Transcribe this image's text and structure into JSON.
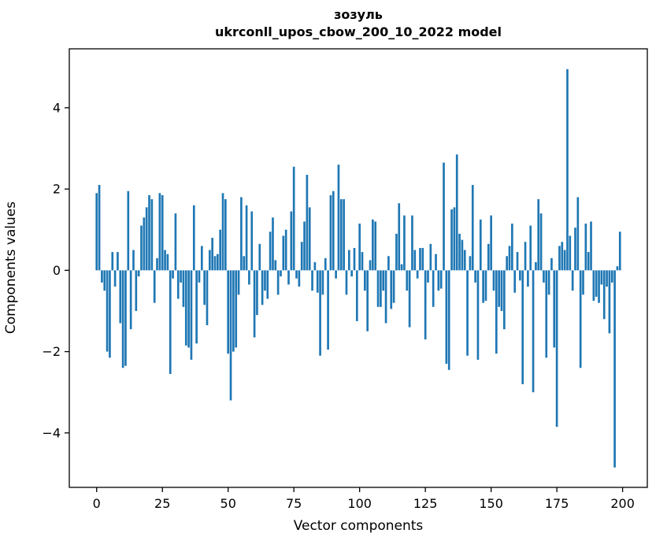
{
  "chart_data": {
    "type": "bar",
    "title": "зозуль",
    "subtitle": "ukrconll_upos_cbow_200_10_2022 model",
    "xlabel": "Vector components",
    "ylabel": "Components values",
    "bar_color": "#1f77b4",
    "spine_color": "#000000",
    "background": "#ffffff",
    "xlim": [
      -10.4,
      209.4
    ],
    "ylim": [
      -5.34,
      5.45
    ],
    "bar_width": 0.8,
    "grid": false,
    "legend": "none",
    "xticks": [
      {
        "value": 0,
        "label": "0"
      },
      {
        "value": 25,
        "label": "25"
      },
      {
        "value": 50,
        "label": "50"
      },
      {
        "value": 75,
        "label": "75"
      },
      {
        "value": 100,
        "label": "100"
      },
      {
        "value": 125,
        "label": "125"
      },
      {
        "value": 150,
        "label": "150"
      },
      {
        "value": 175,
        "label": "175"
      },
      {
        "value": 200,
        "label": "200"
      }
    ],
    "yticks": [
      {
        "value": -4,
        "label": "−4"
      },
      {
        "value": -2,
        "label": "−2"
      },
      {
        "value": 0,
        "label": "0"
      },
      {
        "value": 2,
        "label": "2"
      },
      {
        "value": 4,
        "label": "4"
      }
    ],
    "x_start": 0,
    "values": [
      1.9,
      2.1,
      -0.3,
      -0.5,
      -2.0,
      -2.15,
      0.45,
      -0.4,
      0.45,
      -1.3,
      -2.4,
      -2.35,
      1.95,
      -1.45,
      0.5,
      -1.0,
      -0.15,
      1.1,
      1.3,
      1.55,
      1.85,
      1.75,
      -0.8,
      0.3,
      1.9,
      1.85,
      0.5,
      0.4,
      -2.55,
      -0.2,
      1.4,
      -0.7,
      -0.3,
      -0.9,
      -1.85,
      -1.9,
      -2.2,
      1.6,
      -1.8,
      -0.3,
      0.6,
      -0.85,
      -1.35,
      0.5,
      0.8,
      0.35,
      0.4,
      1.0,
      1.9,
      1.75,
      -2.05,
      -3.2,
      -2.0,
      -1.9,
      -0.6,
      1.8,
      0.35,
      1.6,
      -0.35,
      1.45,
      -1.65,
      -1.1,
      0.65,
      -0.85,
      -0.5,
      -0.7,
      0.95,
      1.3,
      0.25,
      -0.6,
      -0.15,
      0.85,
      1.0,
      -0.35,
      1.45,
      2.55,
      -0.2,
      -0.4,
      0.7,
      1.2,
      2.35,
      1.55,
      -0.5,
      0.2,
      -0.55,
      -2.1,
      -0.6,
      0.3,
      -1.95,
      1.85,
      1.95,
      -0.2,
      2.6,
      1.75,
      1.75,
      -0.6,
      0.5,
      -0.15,
      0.55,
      -1.25,
      1.15,
      0.45,
      -0.5,
      -1.5,
      0.25,
      1.25,
      1.2,
      -0.9,
      -0.9,
      -0.5,
      -1.3,
      0.35,
      -0.95,
      -0.8,
      0.9,
      1.65,
      0.15,
      1.35,
      -0.5,
      -1.4,
      1.35,
      0.5,
      -0.2,
      0.55,
      0.55,
      -1.7,
      -0.3,
      0.65,
      -0.9,
      0.4,
      -0.5,
      -0.45,
      2.65,
      -2.3,
      -2.45,
      1.5,
      1.55,
      2.85,
      0.9,
      0.75,
      0.5,
      -2.1,
      0.35,
      2.1,
      -0.3,
      -2.2,
      1.25,
      -0.8,
      -0.75,
      0.65,
      1.35,
      -0.5,
      -2.05,
      -0.9,
      -1.0,
      -1.45,
      0.35,
      0.6,
      1.15,
      -0.55,
      0.45,
      -0.25,
      -2.8,
      0.7,
      -0.4,
      1.1,
      -3.0,
      0.2,
      1.75,
      1.4,
      -0.3,
      -2.15,
      -0.6,
      0.3,
      -1.9,
      -3.85,
      0.6,
      0.7,
      0.5,
      4.95,
      0.85,
      -0.5,
      1.05,
      1.8,
      -2.4,
      -0.6,
      1.15,
      0.45,
      1.2,
      -0.75,
      -0.65,
      -0.8,
      -0.35,
      -1.2,
      -0.4,
      -1.55,
      -0.3,
      -4.85,
      0.1,
      0.95
    ]
  }
}
